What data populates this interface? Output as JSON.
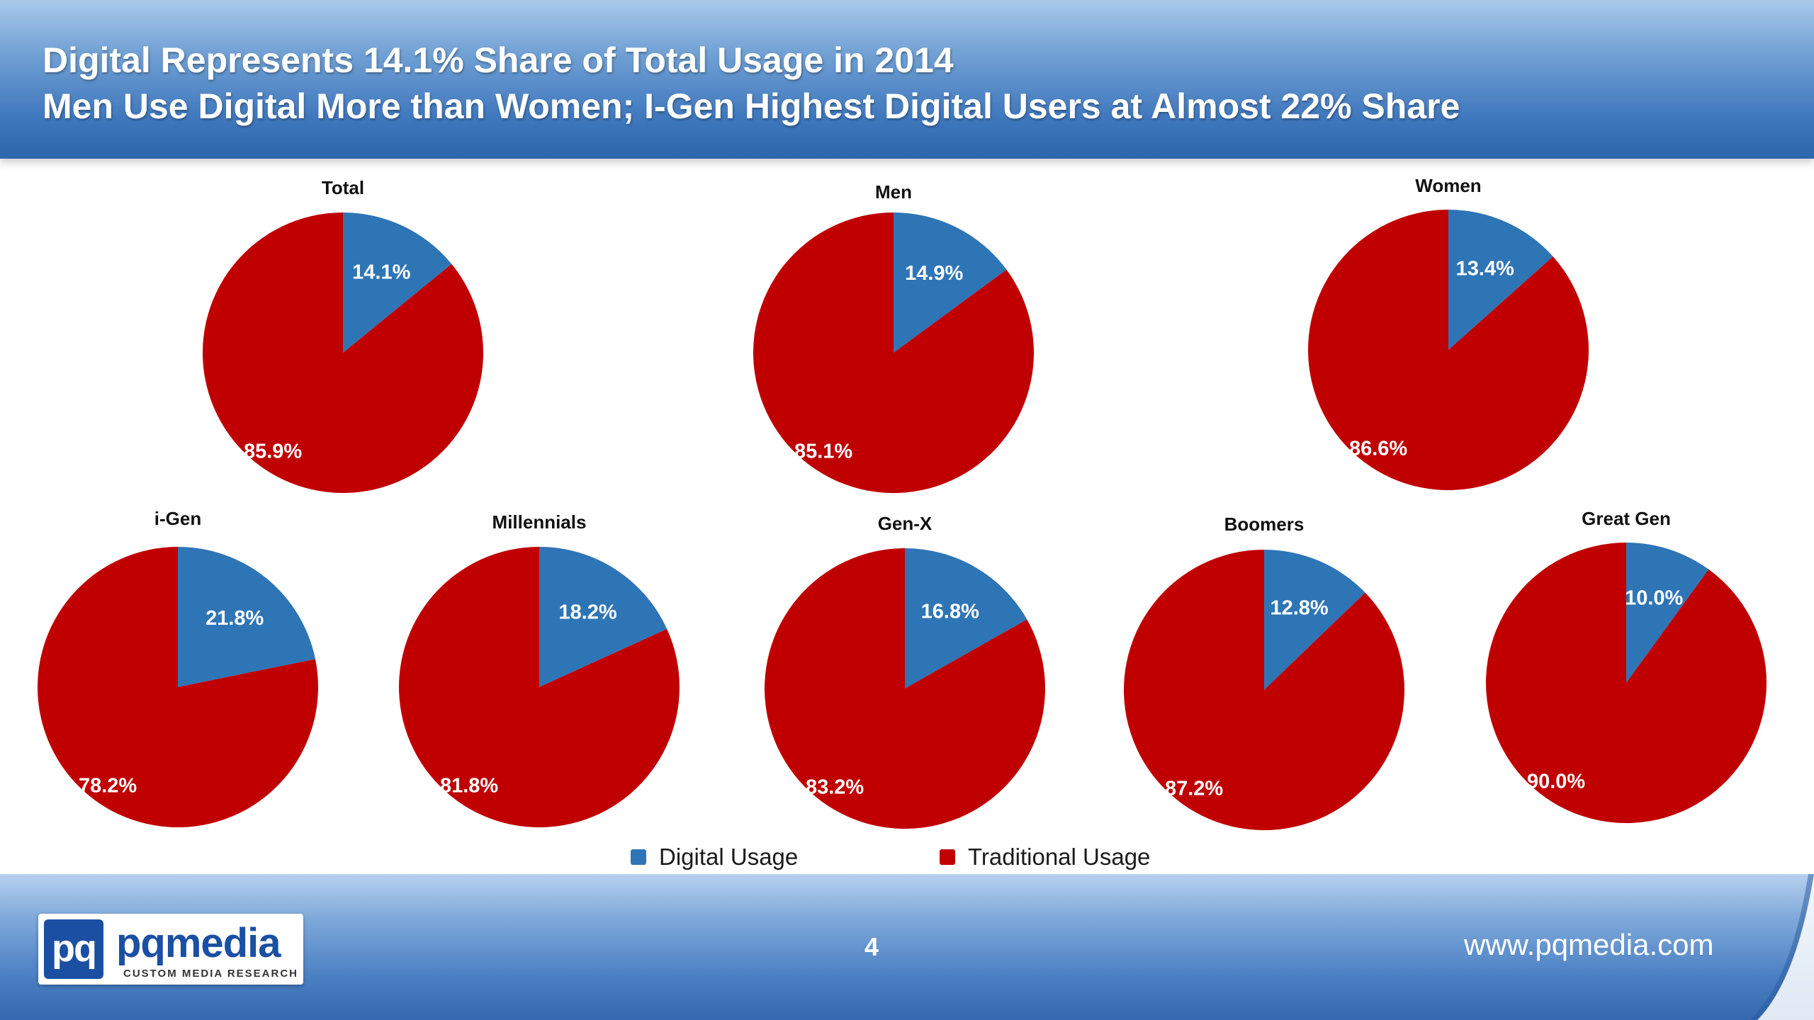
{
  "header": {
    "title_line_1": "Digital Represents 14.1% Share of Total Usage in 2014",
    "title_line_2": "Men Use Digital More than Women; I-Gen Highest Digital Users at Almost 22% Share"
  },
  "colors": {
    "digital": "#2e75b6",
    "traditional": "#c00000",
    "header_bar": "#3f77bd"
  },
  "chart_data": [
    {
      "type": "pie",
      "title": "Total",
      "categories": [
        "Digital Usage",
        "Traditional Usage"
      ],
      "values": [
        14.1,
        85.9
      ],
      "labels": [
        "14.1%",
        "85.9%"
      ]
    },
    {
      "type": "pie",
      "title": "Men",
      "categories": [
        "Digital Usage",
        "Traditional Usage"
      ],
      "values": [
        14.9,
        85.1
      ],
      "labels": [
        "14.9%",
        "85.1%"
      ]
    },
    {
      "type": "pie",
      "title": "Women",
      "categories": [
        "Digital Usage",
        "Traditional Usage"
      ],
      "values": [
        13.4,
        86.6
      ],
      "labels": [
        "13.4%",
        "86.6%"
      ]
    },
    {
      "type": "pie",
      "title": "i-Gen",
      "categories": [
        "Digital Usage",
        "Traditional Usage"
      ],
      "values": [
        21.8,
        78.2
      ],
      "labels": [
        "21.8%",
        "78.2%"
      ]
    },
    {
      "type": "pie",
      "title": "Millennials",
      "categories": [
        "Digital Usage",
        "Traditional Usage"
      ],
      "values": [
        18.2,
        81.8
      ],
      "labels": [
        "18.2%",
        "81.8%"
      ]
    },
    {
      "type": "pie",
      "title": "Gen-X",
      "categories": [
        "Digital Usage",
        "Traditional Usage"
      ],
      "values": [
        16.8,
        83.2
      ],
      "labels": [
        "16.8%",
        "83.2%"
      ]
    },
    {
      "type": "pie",
      "title": "Boomers",
      "categories": [
        "Digital Usage",
        "Traditional Usage"
      ],
      "values": [
        12.8,
        87.2
      ],
      "labels": [
        "12.8%",
        "87.2%"
      ]
    },
    {
      "type": "pie",
      "title": "Great Gen",
      "categories": [
        "Digital Usage",
        "Traditional Usage"
      ],
      "values": [
        10.0,
        90.0
      ],
      "labels": [
        "10.0%",
        "90.0%"
      ]
    }
  ],
  "legend": {
    "digital_label": "Digital Usage",
    "traditional_label": "Traditional Usage"
  },
  "footer": {
    "logo_mark": "pq",
    "logo_word_pq": "pq",
    "logo_word_media": "media",
    "logo_tagline": "CUSTOM MEDIA RESEARCH",
    "page_number": "4",
    "website": "www.pqmedia.com"
  }
}
